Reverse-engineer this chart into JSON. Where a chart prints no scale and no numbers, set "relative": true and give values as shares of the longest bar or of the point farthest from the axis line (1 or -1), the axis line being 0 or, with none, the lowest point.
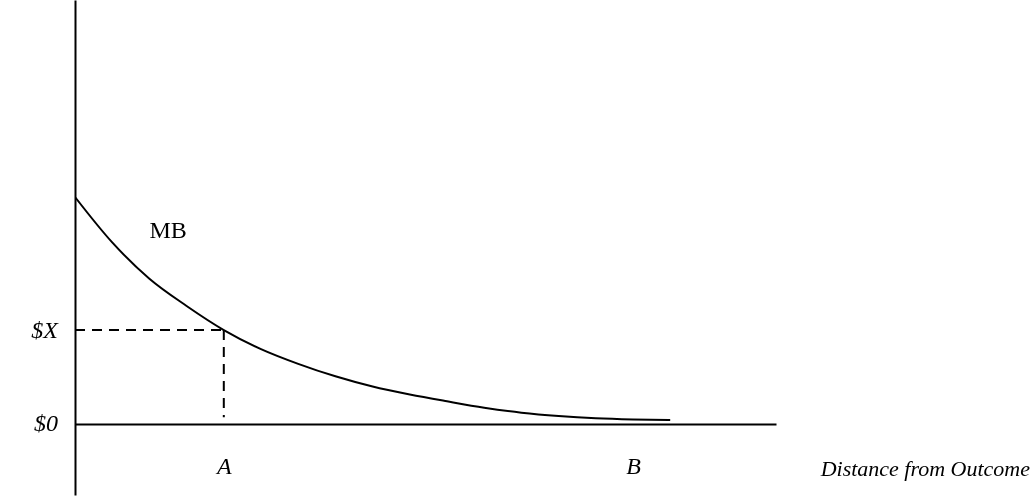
{
  "chart_data": {
    "type": "line",
    "relative": true,
    "categories": [
      null,
      null,
      null,
      null,
      "A",
      null,
      null,
      null,
      null,
      null,
      null,
      null,
      null,
      null,
      null,
      "B",
      null
    ],
    "annotations": [
      "$X",
      "$0",
      "Distance from Outcome"
    ],
    "series": [
      {
        "name": "MB",
        "color": "#000000",
        "line_style": "solid",
        "values": [
          1,
          0.8,
          0.64,
          0.52,
          0.414,
          0.33,
          0.265,
          0.21,
          0.165,
          0.13,
          0.1,
          0.072,
          0.05,
          0.035,
          0.025,
          0.02,
          0.018
        ]
      },
      {
        "color": "#000000",
        "line_style": "dashed",
        "values": [
          0.414,
          0.414,
          0.414,
          0.414,
          0.414,
          null,
          null,
          null,
          null,
          null,
          null,
          null,
          null,
          null,
          null,
          null,
          null
        ]
      },
      {
        "color": "#000000",
        "line_style": "dashed",
        "x": [
          "A",
          "A"
        ],
        "values": [
          0.414,
          0.03
        ]
      }
    ]
  }
}
